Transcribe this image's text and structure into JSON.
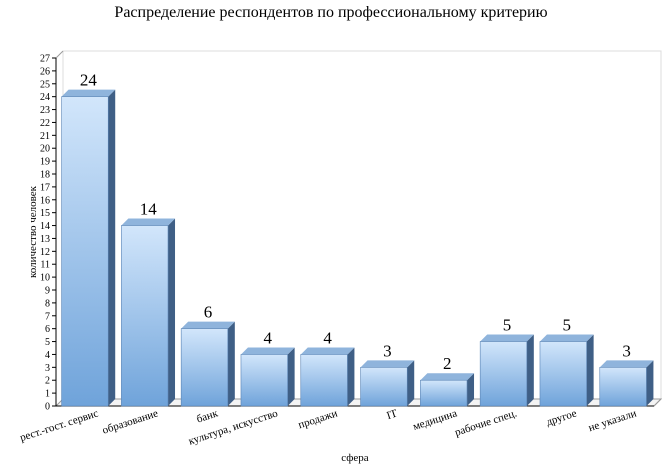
{
  "chart_data": {
    "type": "bar",
    "title": "Распределение респондентов по профессиональному критерию",
    "xlabel": "сфера",
    "ylabel": "количество человек",
    "categories": [
      "рест.-гост. сервис",
      "образование",
      "банк",
      "культура, искусство",
      "продажи",
      "IT",
      "медицина",
      "рабочие спец.",
      "другое",
      "не указали"
    ],
    "values": [
      24,
      14,
      6,
      4,
      4,
      3,
      2,
      5,
      5,
      3
    ],
    "ylim": [
      0,
      27
    ],
    "yticks": [
      "0",
      "1",
      "2",
      "3",
      "4",
      "5",
      "6",
      "7",
      "8",
      "9",
      "10",
      "11",
      "12",
      "13",
      "14",
      "15",
      "16",
      "17",
      "18",
      "19",
      "20",
      "21",
      "22",
      "23",
      "24",
      "25",
      "26",
      "27"
    ],
    "grid": false,
    "legend": "none",
    "colors": {
      "bar_front_top": "#d2e6fb",
      "bar_front_bottom": "#6fa3da",
      "bar_side": "#3f5f86",
      "bar_top": "#8fb4dc",
      "wall": "#dcdcdc"
    }
  }
}
